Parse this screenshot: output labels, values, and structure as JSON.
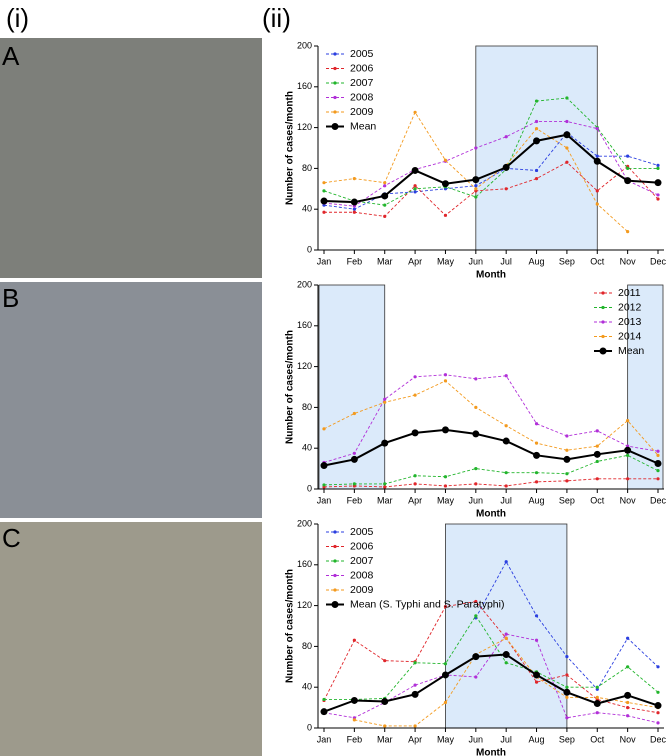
{
  "panel_labels": {
    "left": "(i)",
    "right": "(ii)",
    "rows": [
      "A",
      "B",
      "C"
    ]
  },
  "chart_data": [
    {
      "type": "line",
      "legend": "upper left",
      "xlabel": "Month",
      "ylabel": "Number of cases/month",
      "categories": [
        "Jan",
        "Feb",
        "Mar",
        "Apr",
        "May",
        "Jun",
        "Jul",
        "Aug",
        "Sep",
        "Oct",
        "Nov",
        "Dec"
      ],
      "ylim": [
        0,
        200
      ],
      "yticks": [
        0,
        40,
        80,
        120,
        160,
        200
      ],
      "shaded": [
        [
          "Jun",
          "Oct"
        ]
      ],
      "shade_color": "#dbeafa",
      "series": [
        {
          "name": "2005",
          "color": "#2b3fe0",
          "line_style": "dashed",
          "values": [
            44,
            40,
            55,
            57,
            60,
            63,
            80,
            78,
            115,
            92,
            92,
            83
          ]
        },
        {
          "name": "2006",
          "color": "#e0262b",
          "line_style": "dashed",
          "values": [
            37,
            37,
            33,
            63,
            34,
            58,
            60,
            70,
            86,
            58,
            82,
            50
          ]
        },
        {
          "name": "2007",
          "color": "#22b52c",
          "line_style": "dashed",
          "values": [
            58,
            48,
            44,
            60,
            62,
            52,
            79,
            146,
            149,
            120,
            80,
            80
          ]
        },
        {
          "name": "2008",
          "color": "#b12fd8",
          "line_style": "dashed",
          "values": [
            46,
            43,
            63,
            79,
            87,
            100,
            111,
            126,
            126,
            119,
            68,
            54
          ]
        },
        {
          "name": "2009",
          "color": "#f39a1e",
          "line_style": "dashed",
          "values": [
            66,
            70,
            66,
            135,
            88,
            60,
            83,
            119,
            100,
            45,
            18,
            null
          ]
        },
        {
          "name": "Mean",
          "color": "#000000",
          "line_style": "solid",
          "values": [
            48,
            47,
            53,
            78,
            65,
            69,
            81,
            107,
            113,
            87,
            68,
            66
          ]
        }
      ]
    },
    {
      "type": "line",
      "legend": "upper right",
      "xlabel": "Month",
      "ylabel": "Number of cases/month",
      "categories": [
        "Jan",
        "Feb",
        "Mar",
        "Apr",
        "May",
        "Jun",
        "Jul",
        "Aug",
        "Sep",
        "Oct",
        "Nov",
        "Dec"
      ],
      "ylim": [
        0,
        200
      ],
      "yticks": [
        0,
        40,
        80,
        120,
        160,
        200
      ],
      "shaded": [
        [
          "Jan",
          "Mar"
        ],
        [
          "Nov",
          "Dec"
        ]
      ],
      "shade_color": "#dbeafa",
      "series": [
        {
          "name": "2011",
          "color": "#e0262b",
          "line_style": "dashed",
          "values": [
            2,
            3,
            2,
            5,
            3,
            5,
            3,
            7,
            8,
            10,
            10,
            10
          ]
        },
        {
          "name": "2012",
          "color": "#22b52c",
          "line_style": "dashed",
          "values": [
            4,
            5,
            5,
            13,
            12,
            20,
            16,
            16,
            15,
            27,
            33,
            18
          ]
        },
        {
          "name": "2013",
          "color": "#b12fd8",
          "line_style": "dashed",
          "values": [
            26,
            35,
            88,
            110,
            112,
            108,
            111,
            64,
            52,
            57,
            42,
            37
          ]
        },
        {
          "name": "2014",
          "color": "#f39a1e",
          "line_style": "dashed",
          "values": [
            59,
            74,
            85,
            92,
            106,
            80,
            62,
            45,
            38,
            42,
            67,
            33
          ]
        },
        {
          "name": "Mean",
          "color": "#000000",
          "line_style": "solid",
          "values": [
            23,
            29,
            45,
            55,
            58,
            54,
            47,
            33,
            29,
            34,
            38,
            25
          ]
        }
      ]
    },
    {
      "type": "line",
      "legend": "upper left",
      "xlabel": "Month",
      "ylabel": "Number of cases/month",
      "categories": [
        "Jan",
        "Feb",
        "Mar",
        "Apr",
        "May",
        "Jun",
        "Jul",
        "Aug",
        "Sep",
        "Oct",
        "Nov",
        "Dec"
      ],
      "ylim": [
        0,
        200
      ],
      "yticks": [
        0,
        40,
        80,
        120,
        160,
        200
      ],
      "shaded": [
        [
          "May",
          "Sep"
        ]
      ],
      "shade_color": "#dbeafa",
      "series": [
        {
          "name": "2005",
          "color": "#2b3fe0",
          "line_style": "dashed",
          "values": [
            null,
            null,
            null,
            null,
            null,
            108,
            163,
            110,
            70,
            38,
            88,
            60
          ]
        },
        {
          "name": "2006",
          "color": "#e0262b",
          "line_style": "dashed",
          "values": [
            27,
            86,
            66,
            65,
            119,
            124,
            88,
            45,
            52,
            28,
            20,
            15
          ]
        },
        {
          "name": "2007",
          "color": "#22b52c",
          "line_style": "dashed",
          "values": [
            28,
            28,
            29,
            64,
            63,
            110,
            64,
            55,
            40,
            40,
            60,
            35
          ]
        },
        {
          "name": "2008",
          "color": "#b12fd8",
          "line_style": "dashed",
          "values": [
            15,
            10,
            25,
            42,
            52,
            50,
            92,
            86,
            10,
            15,
            12,
            5
          ]
        },
        {
          "name": "2009",
          "color": "#f39a1e",
          "line_style": "dashed",
          "values": [
            null,
            8,
            2,
            2,
            25,
            72,
            88,
            50,
            30,
            30,
            25,
            20
          ]
        },
        {
          "name": "Mean (S. Typhi and S. Paratyphi)",
          "color": "#000000",
          "line_style": "solid",
          "values": [
            16,
            27,
            26,
            33,
            52,
            70,
            72,
            52,
            35,
            24,
            32,
            22
          ]
        }
      ]
    }
  ]
}
